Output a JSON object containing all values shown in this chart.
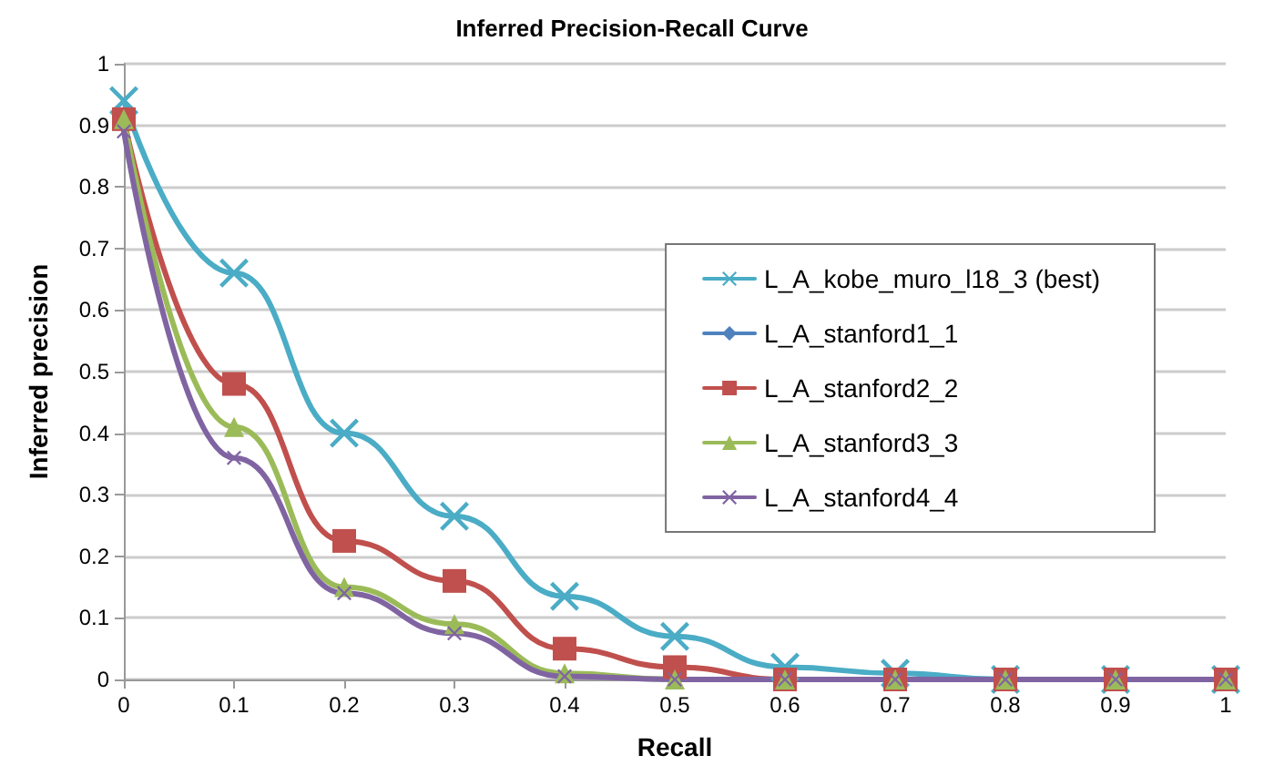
{
  "chart_data": {
    "type": "line",
    "title": "Inferred Precision-Recall Curve",
    "xlabel": "Recall",
    "ylabel": "Inferred precision",
    "x": [
      0,
      0.1,
      0.2,
      0.3,
      0.4,
      0.5,
      0.6,
      0.7,
      0.8,
      0.9,
      1
    ],
    "xlim": [
      0,
      1
    ],
    "xticks": [
      0,
      0.1,
      0.2,
      0.3,
      0.4,
      0.5,
      0.6,
      0.7,
      0.8,
      0.9,
      1
    ],
    "ylim": [
      0,
      1
    ],
    "yticks": [
      0,
      0.1,
      0.2,
      0.3,
      0.4,
      0.5,
      0.6,
      0.7,
      0.8,
      0.9,
      1
    ],
    "grid": "y",
    "legend": "right",
    "series": [
      {
        "name": "L_A_kobe_muro_l18_3 (best)",
        "color": "#4bacc6",
        "marker": "cross",
        "values": [
          0.94,
          0.66,
          0.4,
          0.265,
          0.135,
          0.07,
          0.02,
          0.01,
          0,
          0,
          0
        ]
      },
      {
        "name": "L_A_stanford1_1",
        "color": "#4f81bd",
        "marker": "diamond",
        "values": [
          null,
          null,
          null,
          null,
          null,
          null,
          null,
          null,
          null,
          null,
          null
        ]
      },
      {
        "name": "L_A_stanford2_2",
        "color": "#c0504d",
        "marker": "square",
        "values": [
          0.91,
          0.48,
          0.225,
          0.16,
          0.05,
          0.02,
          0,
          0,
          0,
          0,
          0
        ]
      },
      {
        "name": "L_A_stanford3_3",
        "color": "#9bbb59",
        "marker": "triangle",
        "values": [
          0.91,
          0.41,
          0.15,
          0.09,
          0.01,
          0,
          0,
          0,
          0,
          0,
          0
        ]
      },
      {
        "name": "L_A_stanford4_4",
        "color": "#8064a2",
        "marker": "cross",
        "values": [
          0.89,
          0.36,
          0.14,
          0.075,
          0.005,
          0,
          0,
          0,
          0,
          0,
          0
        ]
      }
    ]
  }
}
